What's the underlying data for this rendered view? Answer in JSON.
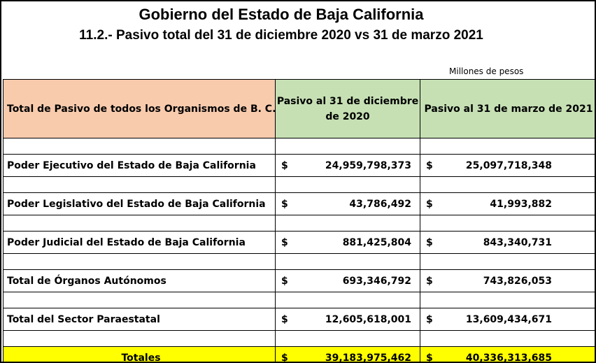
{
  "header": {
    "title": "Gobierno del Estado de Baja California",
    "subtitle": "11.2.- Pasivo total del 31 de diciembre 2020 vs 31 de marzo 2021",
    "units": "Millones de pesos"
  },
  "table": {
    "columns": [
      "Total de Pasivo de todos los Organismos de B. C.",
      "Pasivo al 31 de diciembre de 2020",
      "Pasivo al 31 de marzo de 2021"
    ],
    "currency_symbol": "$",
    "rows": [
      {
        "label": "Poder Ejecutivo del Estado de Baja California",
        "dec_2020": "24,959,798,373",
        "mar_2021": "25,097,718,348"
      },
      {
        "label": "Poder Legislativo del Estado de Baja California",
        "dec_2020": "43,786,492",
        "mar_2021": "41,993,882"
      },
      {
        "label": "Poder Judicial del Estado de Baja California",
        "dec_2020": "881,425,804",
        "mar_2021": "843,340,731"
      },
      {
        "label": "Total de Órganos Autónomos",
        "dec_2020": "693,346,792",
        "mar_2021": "743,826,053"
      },
      {
        "label": "Total del Sector Paraestatal",
        "dec_2020": "12,605,618,001",
        "mar_2021": "13,609,434,671"
      }
    ],
    "totals": {
      "label": "Totales",
      "dec_2020": "39,183,975,462",
      "mar_2021": "40,336,313,685"
    }
  },
  "colors": {
    "header_left_bg": "#f8cbad",
    "header_right_bg": "#c6e0b4",
    "totals_bg": "#ffff00"
  }
}
